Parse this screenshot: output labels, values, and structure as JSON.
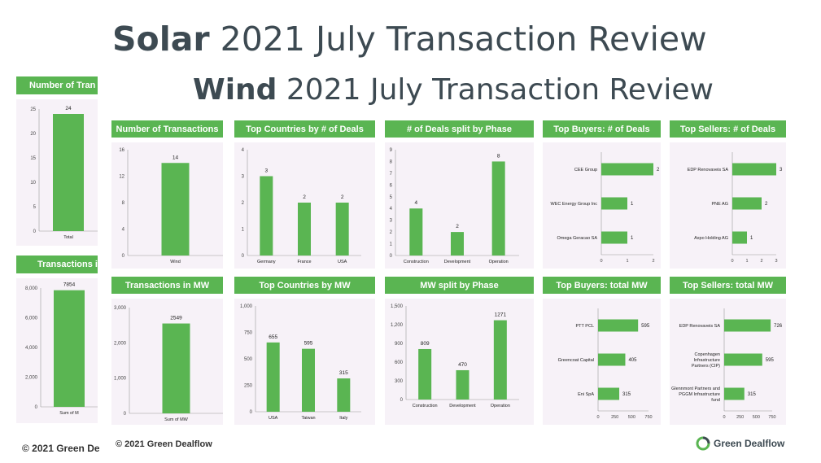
{
  "solar": {
    "title_bold": "Solar",
    "title_rest": " 2021 July Transaction Review",
    "hdr_transactions": "Number of Tran",
    "hdr_mw": "Transactions i",
    "footer": "© 2021 Green De"
  },
  "wind": {
    "title_bold": "Wind",
    "title_rest": " 2021 July Transaction Review",
    "footer": "© 2021 Green Dealflow",
    "brand": "Green Dealflow",
    "headers": {
      "num_tx": "Number of Transactions",
      "countries_deals": "Top Countries by # of Deals",
      "phase_deals": "# of Deals split by Phase",
      "buyers_deals": "Top Buyers: # of Deals",
      "sellers_deals": "Top Sellers: # of Deals",
      "tx_mw": "Transactions in MW",
      "countries_mw": "Top Countries by MW",
      "phase_mw": "MW split by Phase",
      "buyers_mw": "Top Buyers: total MW",
      "sellers_mw": "Top Sellers: total MW"
    }
  },
  "colors": {
    "bar": "#5ab552",
    "header": "#5ab552",
    "panel": "#f7f2f8",
    "title": "#3d4a52"
  },
  "chart_data": [
    {
      "id": "solar_tx",
      "type": "bar",
      "orientation": "v",
      "categories": [
        "Total"
      ],
      "values": [
        24
      ],
      "ticks": [
        0,
        5,
        10,
        15,
        20,
        25
      ],
      "ylim": [
        0,
        25
      ]
    },
    {
      "id": "solar_mw",
      "type": "bar",
      "orientation": "v",
      "categories": [
        "Sum of M"
      ],
      "values": [
        7854
      ],
      "ticks": [
        0,
        2000,
        4000,
        6000,
        8000
      ],
      "tick_labels": [
        "0",
        "2,000",
        "4,000",
        "6,000",
        "8,000"
      ],
      "ylim": [
        0,
        8000
      ]
    },
    {
      "id": "wind_tx",
      "type": "bar",
      "orientation": "v",
      "categories": [
        "Wind"
      ],
      "values": [
        14
      ],
      "ticks": [
        0,
        4,
        8,
        12,
        16
      ],
      "ylim": [
        0,
        16
      ]
    },
    {
      "id": "wind_countries_deals",
      "type": "bar",
      "orientation": "v",
      "categories": [
        "Germany",
        "France",
        "USA"
      ],
      "values": [
        3,
        2,
        2
      ],
      "ticks": [
        0,
        1,
        2,
        3,
        4
      ],
      "ylim": [
        0,
        4
      ]
    },
    {
      "id": "wind_phase_deals",
      "type": "bar",
      "orientation": "v",
      "categories": [
        "Construction",
        "Development",
        "Operation"
      ],
      "values": [
        4,
        2,
        8
      ],
      "ticks": [
        0,
        1,
        2,
        3,
        4,
        5,
        6,
        7,
        8,
        9
      ],
      "ylim": [
        0,
        9
      ]
    },
    {
      "id": "wind_buyers_deals",
      "type": "bar",
      "orientation": "h",
      "categories": [
        "CEE Group",
        "WEC Energy Group Inc",
        "Omega Geracao SA"
      ],
      "values": [
        2,
        1,
        1
      ],
      "ticks": [
        0,
        1,
        2
      ],
      "xlim": [
        0,
        2
      ]
    },
    {
      "id": "wind_sellers_deals",
      "type": "bar",
      "orientation": "h",
      "categories": [
        "EDP Renovaveis SA",
        "PNE AG",
        "Axpo Holding AG"
      ],
      "values": [
        3,
        2,
        1
      ],
      "ticks": [
        0,
        1,
        2,
        3
      ],
      "xlim": [
        0,
        3
      ]
    },
    {
      "id": "wind_mw",
      "type": "bar",
      "orientation": "v",
      "categories": [
        "Sum of MW"
      ],
      "values": [
        2549
      ],
      "ticks": [
        0,
        1000,
        2000,
        3000
      ],
      "tick_labels": [
        "0",
        "1,000",
        "2,000",
        "3,000"
      ],
      "ylim": [
        0,
        3000
      ]
    },
    {
      "id": "wind_countries_mw",
      "type": "bar",
      "orientation": "v",
      "categories": [
        "USA",
        "Taiwan",
        "Italy"
      ],
      "values": [
        655,
        595,
        315
      ],
      "ticks": [
        0,
        250,
        500,
        750,
        1000
      ],
      "tick_labels": [
        "0",
        "250",
        "500",
        "750",
        "1,000"
      ],
      "ylim": [
        0,
        1000
      ]
    },
    {
      "id": "wind_phase_mw",
      "type": "bar",
      "orientation": "v",
      "categories": [
        "Construction",
        "Development",
        "Operation"
      ],
      "values": [
        809,
        470,
        1271
      ],
      "ticks": [
        0,
        300,
        600,
        900,
        1200,
        1500
      ],
      "tick_labels": [
        "0",
        "300",
        "600",
        "900",
        "1,200",
        "1,500"
      ],
      "ylim": [
        0,
        1500
      ]
    },
    {
      "id": "wind_buyers_mw",
      "type": "bar",
      "orientation": "h",
      "categories": [
        "PTT PCL",
        "Greencoat Capital",
        "Eni SpA"
      ],
      "values": [
        595,
        405,
        315
      ],
      "ticks": [
        0,
        250,
        500,
        750
      ],
      "xlim": [
        0,
        750
      ]
    },
    {
      "id": "wind_sellers_mw",
      "type": "bar",
      "orientation": "h",
      "categories": [
        "EDP Renovaveis SA",
        "Copenhagen Infrastructure Partners (CIP)",
        "Glennmont Partners and PGGM Infrastructure fund"
      ],
      "values": [
        726,
        595,
        315
      ],
      "ticks": [
        0,
        250,
        500,
        750
      ],
      "xlim": [
        0,
        750
      ]
    }
  ]
}
